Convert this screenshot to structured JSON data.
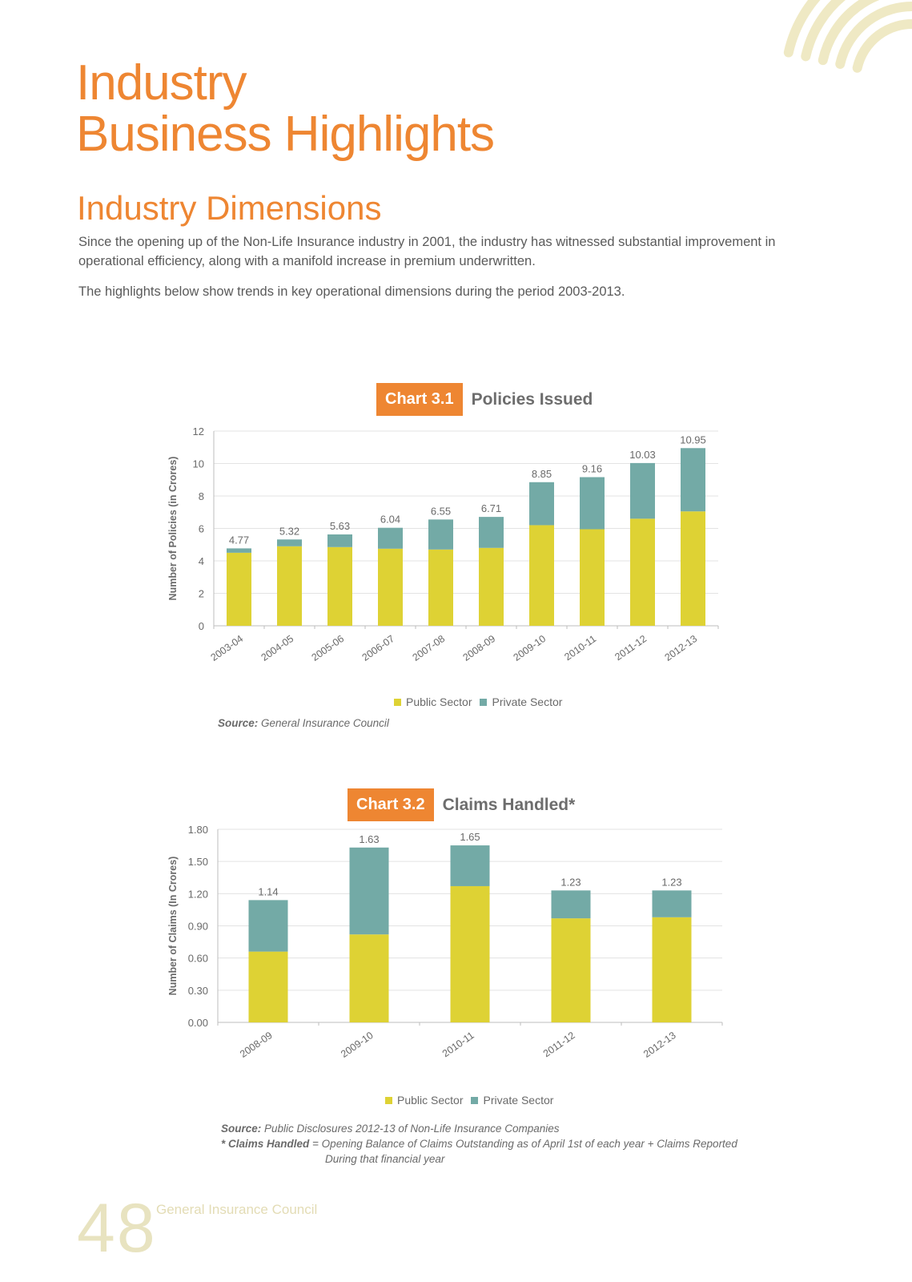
{
  "page": {
    "title_line1": "Industry",
    "title_line2": "Business Highlights",
    "subtitle": "Industry Dimensions",
    "paragraph1": "Since the opening up of the Non-Life Insurance industry in 2001, the industry has witnessed substantial improvement in operational efficiency, along with a manifold increase in premium underwritten.",
    "paragraph2": "The highlights below show trends in key operational dimensions during the period 2003-2013.",
    "page_number": "48",
    "footer_org": "General Insurance Council"
  },
  "colors": {
    "accent": "#EE8632",
    "public": "#DED234",
    "private": "#73AAA6",
    "deco": "#EFE9C4"
  },
  "charts_text": [
    {
      "tag": "Chart 3.1",
      "name": "Policies Issued",
      "legend": [
        "Public Sector",
        "Private Sector"
      ],
      "source_label": "Source:",
      "source_text": "General Insurance Council"
    },
    {
      "tag": "Chart 3.2",
      "name": "Claims Handled*",
      "legend": [
        "Public Sector",
        "Private Sector"
      ],
      "source_label": "Source:",
      "source_text": "Public Disclosures 2012-13 of Non-Life Insurance Companies",
      "note_label": "* Claims Handled",
      "note_text": "= Opening Balance of Claims Outstanding as of April 1st of each year + Claims Reported",
      "note_text2": "During that financial year"
    }
  ],
  "chart_data": [
    {
      "type": "bar",
      "stacked": true,
      "title": "Policies Issued",
      "ylabel": "Number of Policies (in Crores)",
      "xlabel": "",
      "ylim": [
        0,
        12
      ],
      "yticks": [
        "0",
        "2",
        "4",
        "6",
        "8",
        "10",
        "12"
      ],
      "categories": [
        "2003-04",
        "2004-05",
        "2005-06",
        "2006-07",
        "2007-08",
        "2008-09",
        "2009-10",
        "2010-11",
        "2011-12",
        "2012-13"
      ],
      "series": [
        {
          "name": "Public Sector",
          "values": [
            4.5,
            4.9,
            4.85,
            4.75,
            4.7,
            4.8,
            6.2,
            5.95,
            6.6,
            7.05
          ]
        },
        {
          "name": "Private Sector",
          "values": [
            0.27,
            0.42,
            0.78,
            1.29,
            1.85,
            1.91,
            2.65,
            3.21,
            3.43,
            3.9
          ]
        }
      ],
      "totals": [
        "4.77",
        "5.32",
        "5.63",
        "6.04",
        "6.55",
        "6.71",
        "8.85",
        "9.16",
        "10.03",
        "10.95"
      ],
      "grid": true,
      "legend_position": "bottom"
    },
    {
      "type": "bar",
      "stacked": true,
      "title": "Claims Handled*",
      "ylabel": "Number of Claims (In Crores)",
      "xlabel": "",
      "ylim": [
        0,
        1.8
      ],
      "yticks": [
        "0.00",
        "0.30",
        "0.60",
        "0.90",
        "1.20",
        "1.50",
        "1.80"
      ],
      "categories": [
        "2008-09",
        "2009-10",
        "2010-11",
        "2011-12",
        "2012-13"
      ],
      "series": [
        {
          "name": "Public Sector",
          "values": [
            0.66,
            0.82,
            1.27,
            0.97,
            0.98
          ]
        },
        {
          "name": "Private Sector",
          "values": [
            0.48,
            0.81,
            0.38,
            0.26,
            0.25
          ]
        }
      ],
      "totals": [
        "1.14",
        "1.63",
        "1.65",
        "1.23",
        "1.23"
      ],
      "grid": true,
      "legend_position": "bottom"
    }
  ]
}
